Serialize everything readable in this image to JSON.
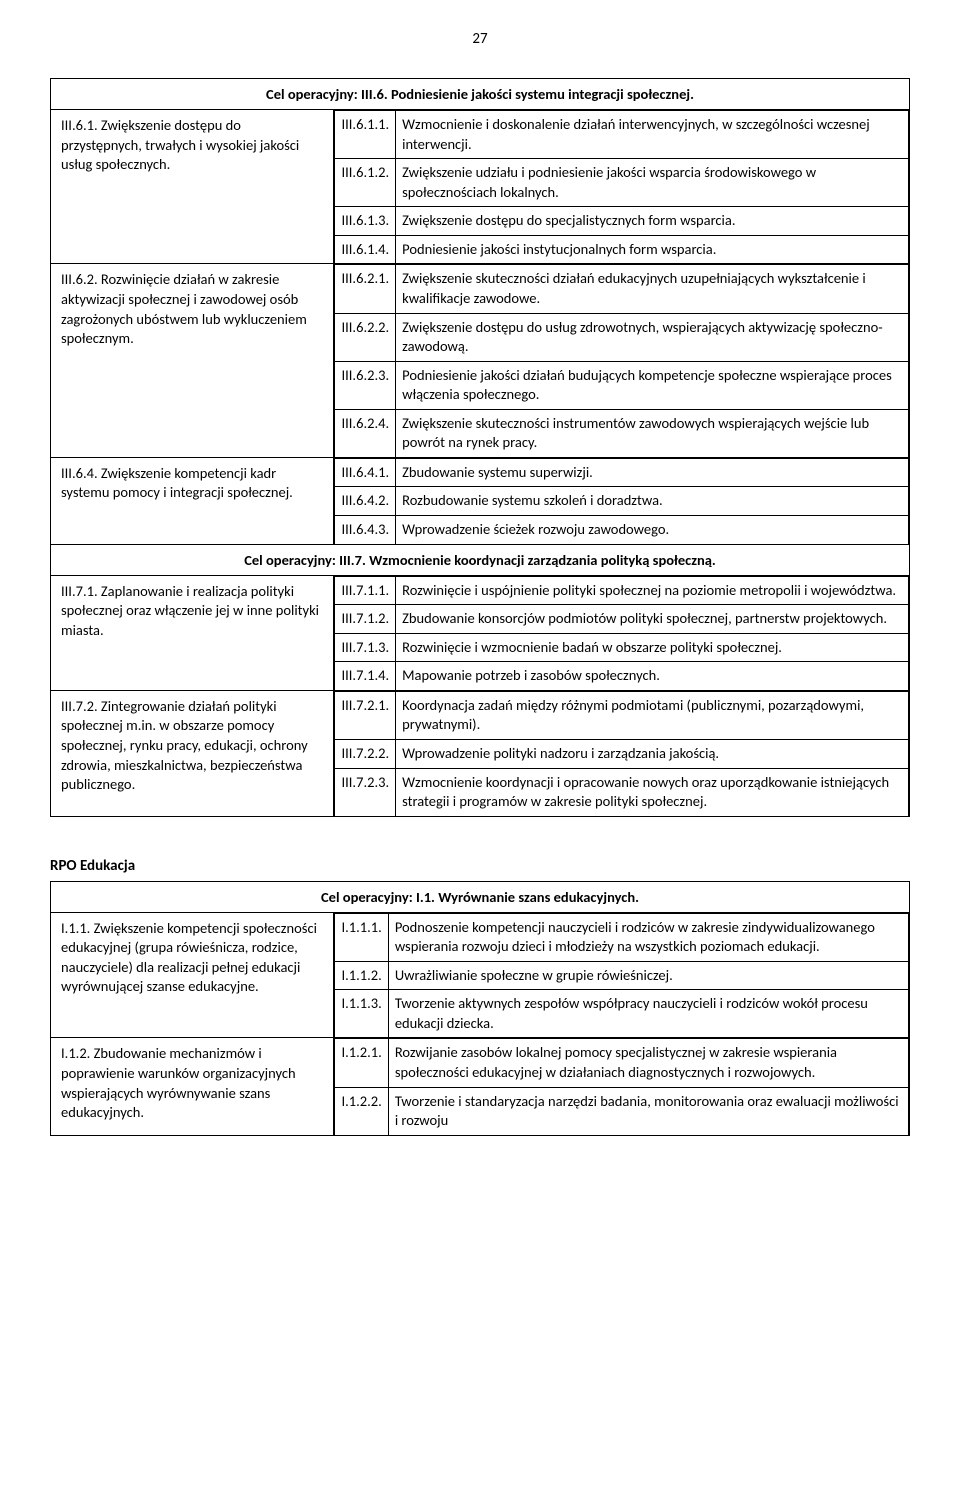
{
  "page_number": "27",
  "tables": [
    {
      "blocks": [
        {
          "heading": "Cel operacyjny: III.6. Podniesienie jakości systemu integracji społecznej.",
          "rows": [
            {
              "left": "III.6.1. Zwiększenie dostępu do przystępnych, trwałych i wysokiej jakości usług społecznych.",
              "right": [
                {
                  "code": "III.6.1.1.",
                  "text": "Wzmocnienie i doskonalenie działań interwencyjnych, w szczególności wczesnej interwencji."
                },
                {
                  "code": "III.6.1.2.",
                  "text": "Zwiększenie udziału i podniesienie jakości wsparcia środowiskowego w społecznościach lokalnych."
                },
                {
                  "code": "III.6.1.3.",
                  "text": "Zwiększenie dostępu do specjalistycznych form wsparcia."
                },
                {
                  "code": "III.6.1.4.",
                  "text": "Podniesienie jakości instytucjonalnych form wsparcia."
                }
              ]
            },
            {
              "left": "III.6.2. Rozwinięcie działań w zakresie aktywizacji społecznej i zawodowej osób zagrożonych ubóstwem lub wykluczeniem społecznym.",
              "right": [
                {
                  "code": "III.6.2.1.",
                  "text": "Zwiększenie skuteczności działań edukacyjnych uzupełniających wykształcenie i kwalifikacje zawodowe."
                },
                {
                  "code": "III.6.2.2.",
                  "text": "Zwiększenie dostępu do usług zdrowotnych, wspierających aktywizację społeczno-zawodową."
                },
                {
                  "code": "III.6.2.3.",
                  "text": "Podniesienie jakości działań budujących kompetencje społeczne wspierające proces włączenia społecznego."
                },
                {
                  "code": "III.6.2.4.",
                  "text": "Zwiększenie skuteczności instrumentów zawodowych wspierających wejście lub powrót na rynek pracy."
                }
              ]
            },
            {
              "left": "III.6.4. Zwiększenie kompetencji kadr systemu pomocy i integracji społecznej.",
              "right": [
                {
                  "code": "III.6.4.1.",
                  "text": "Zbudowanie systemu superwizji."
                },
                {
                  "code": "III.6.4.2.",
                  "text": "Rozbudowanie systemu szkoleń i doradztwa."
                },
                {
                  "code": "III.6.4.3.",
                  "text": "Wprowadzenie ścieżek rozwoju zawodowego."
                }
              ]
            }
          ]
        },
        {
          "heading": "Cel operacyjny: III.7. Wzmocnienie koordynacji zarządzania polityką społeczną.",
          "rows": [
            {
              "left": "III.7.1. Zaplanowanie i realizacja polityki społecznej oraz włączenie jej w inne polityki miasta.",
              "right": [
                {
                  "code": "III.7.1.1.",
                  "text": "Rozwinięcie i uspójnienie polityki społecznej na poziomie metropolii i województwa."
                },
                {
                  "code": "III.7.1.2.",
                  "text": "Zbudowanie konsorcjów podmiotów polityki społecznej, partnerstw projektowych."
                },
                {
                  "code": "III.7.1.3.",
                  "text": "Rozwinięcie i wzmocnienie badań w obszarze polityki społecznej."
                },
                {
                  "code": "III.7.1.4.",
                  "text": "Mapowanie potrzeb i zasobów społecznych."
                }
              ]
            },
            {
              "left": "III.7.2. Zintegrowanie działań polityki społecznej m.in. w obszarze pomocy społecznej, rynku pracy, edukacji, ochrony zdrowia, mieszkalnictwa, bezpieczeństwa publicznego.",
              "right": [
                {
                  "code": "III.7.2.1.",
                  "text": "Koordynacja zadań między różnymi podmiotami (publicznymi, pozarządowymi, prywatnymi)."
                },
                {
                  "code": "III.7.2.2.",
                  "text": "Wprowadzenie polityki nadzoru i zarządzania jakością."
                },
                {
                  "code": "III.7.2.3.",
                  "text": "Wzmocnienie koordynacji i opracowanie nowych oraz uporządkowanie istniejących strategii i programów w zakresie polityki społecznej."
                }
              ]
            }
          ]
        }
      ]
    },
    {
      "title": "RPO Edukacja",
      "blocks": [
        {
          "heading": "Cel operacyjny: I.1. Wyrównanie szans edukacyjnych.",
          "rows": [
            {
              "left": "I.1.1. Zwiększenie kompetencji społeczności edukacyjnej (grupa rówieśnicza, rodzice, nauczyciele) dla realizacji pełnej edukacji wyrównującej szanse edukacyjne.",
              "right": [
                {
                  "code": "I.1.1.1.",
                  "text": "Podnoszenie kompetencji nauczycieli i rodziców w zakresie zindywidualizowanego wspierania rozwoju dzieci i młodzieży na wszystkich poziomach edukacji."
                },
                {
                  "code": "I.1.1.2.",
                  "text": "Uwrażliwianie społeczne w grupie rówieśniczej."
                },
                {
                  "code": "I.1.1.3.",
                  "text": "Tworzenie aktywnych zespołów współpracy nauczycieli i rodziców wokół procesu edukacji dziecka."
                }
              ]
            },
            {
              "left": "I.1.2. Zbudowanie mechanizmów i poprawienie warunków organizacyjnych wspierających wyrównywanie szans edukacyjnych.",
              "right": [
                {
                  "code": "I.1.2.1.",
                  "text": "Rozwijanie zasobów lokalnej pomocy specjalistycznej w zakresie wspierania społeczności edukacyjnej w działaniach diagnostycznych i rozwojowych."
                },
                {
                  "code": "I.1.2.2.",
                  "text": "Tworzenie i standaryzacja narzędzi badania, monitorowania oraz ewaluacji możliwości i rozwoju"
                }
              ]
            }
          ]
        }
      ]
    }
  ]
}
